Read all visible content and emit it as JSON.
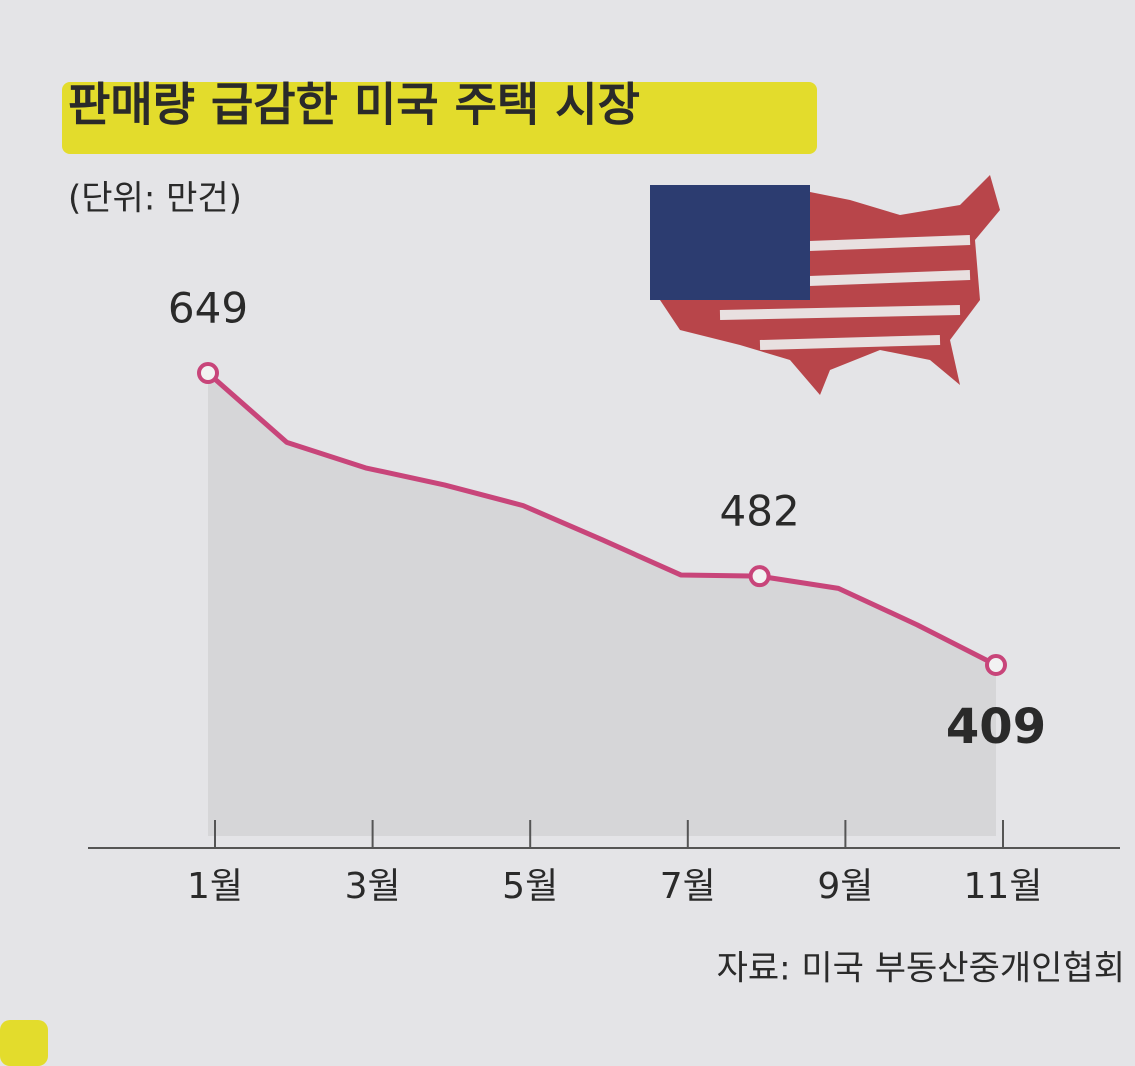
{
  "chart_data": {
    "type": "line",
    "title": "판매량 급감한 미국 주택 시장",
    "subtitle": "(단위: 만건)",
    "source": "자료: 미국 부동산중개인협회",
    "categories": [
      "1월",
      null,
      "3월",
      null,
      "5월",
      null,
      "7월",
      null,
      "9월",
      null,
      "11월"
    ],
    "series": [
      {
        "name": "판매량",
        "color": "#c8457a",
        "values": [
          649,
          592,
          571,
          557,
          540,
          512,
          483,
          482,
          472,
          442,
          409
        ],
        "value_labels": [
          "649",
          null,
          null,
          null,
          null,
          null,
          null,
          "482",
          null,
          null,
          "409"
        ]
      }
    ],
    "fill_color": "#d6d6d8"
  }
}
